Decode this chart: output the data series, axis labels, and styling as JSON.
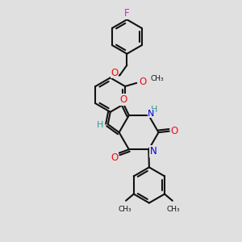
{
  "background_color": "#e0e0e0",
  "bond_color": "#111111",
  "N_color": "#0000dd",
  "O_color": "#ee1111",
  "F_color": "#bb33bb",
  "H_color": "#339999",
  "line_width": 1.5,
  "figsize": [
    3.0,
    3.0
  ],
  "dpi": 100,
  "xlim": [
    0,
    10
  ],
  "ylim": [
    0,
    10
  ]
}
